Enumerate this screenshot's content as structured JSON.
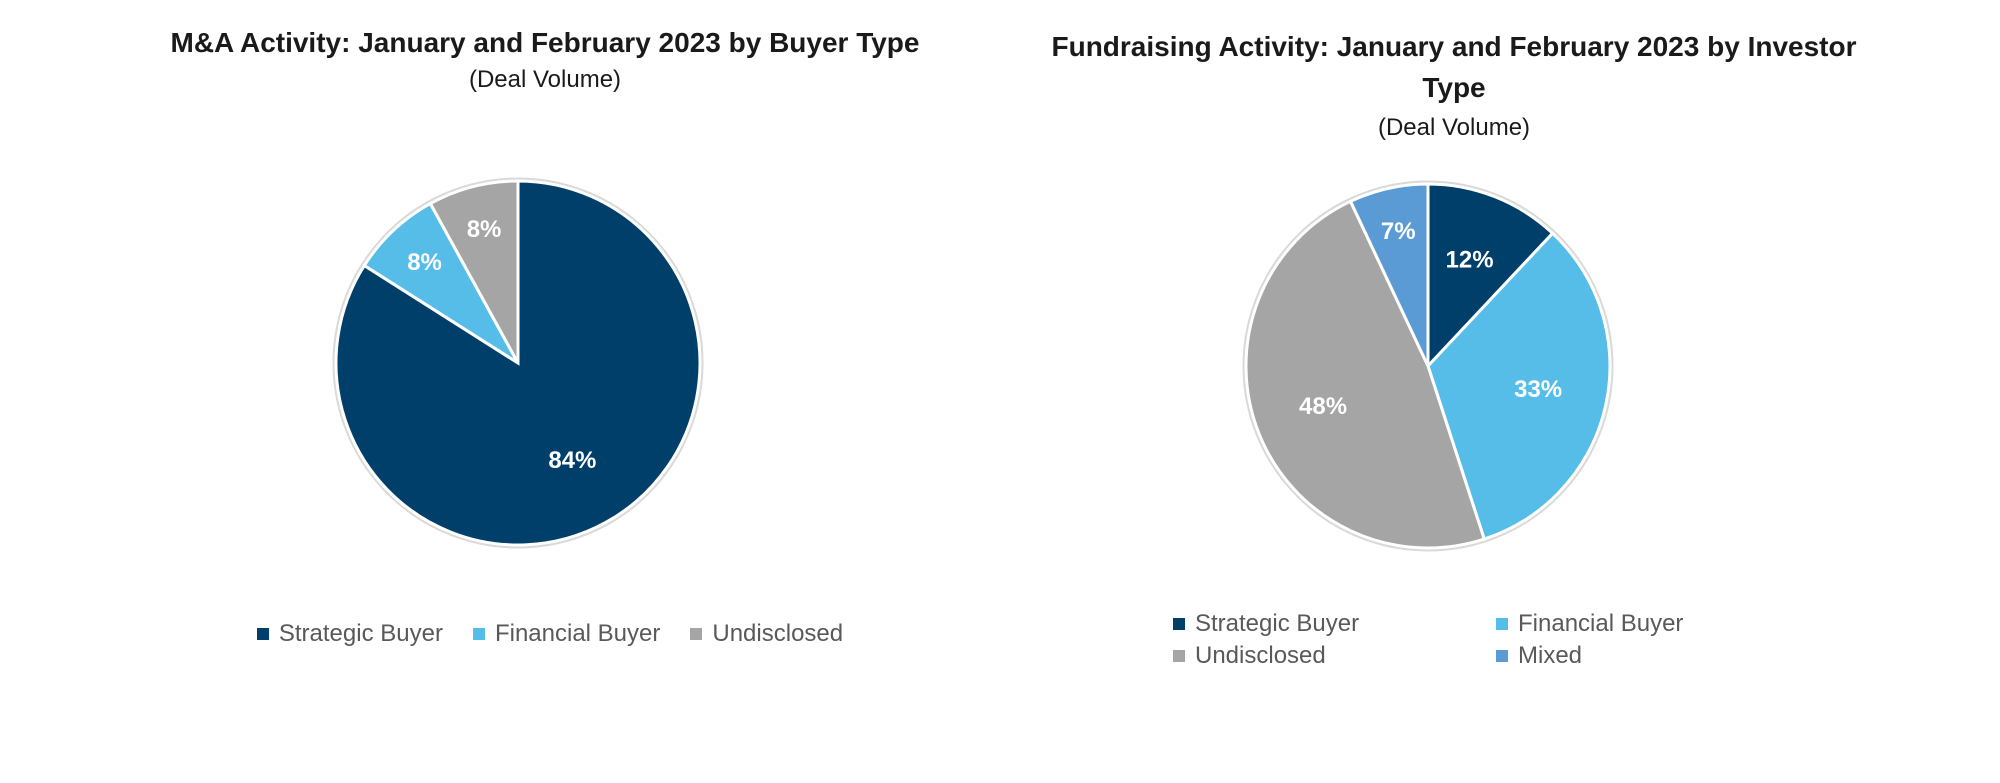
{
  "chart_data": [
    {
      "type": "pie",
      "title": "M&A Activity: January and February 2023 by Buyer Type",
      "subtitle": "(Deal Volume)",
      "categories": [
        "Strategic Buyer",
        "Financial Buyer",
        "Undisclosed"
      ],
      "values": [
        84,
        8,
        8
      ],
      "value_labels": [
        "84%",
        "8%",
        "8%"
      ],
      "colors": [
        "#003f6a",
        "#56bde8",
        "#a5a5a5"
      ],
      "legend": "bottom"
    },
    {
      "type": "pie",
      "title": "Fundraising Activity: January and February 2023 by Investor Type",
      "subtitle": "(Deal Volume)",
      "categories": [
        "Strategic Buyer",
        "Financial Buyer",
        "Undisclosed",
        "Mixed"
      ],
      "values": [
        12,
        33,
        48,
        7
      ],
      "value_labels": [
        "12%",
        "33%",
        "48%",
        "7%"
      ],
      "colors": [
        "#003f6a",
        "#56bde8",
        "#a5a5a5",
        "#5b9bd5"
      ],
      "legend": "bottom"
    }
  ]
}
